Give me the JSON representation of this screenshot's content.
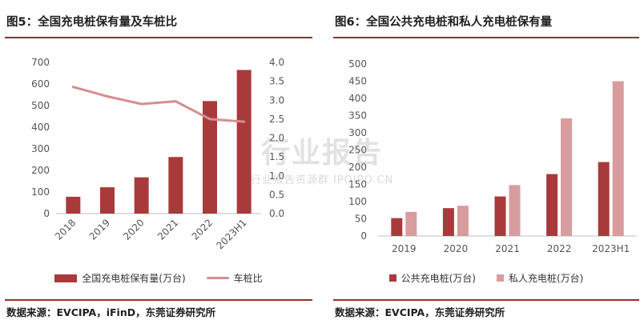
{
  "left": {
    "title": "图5：全国充电桩保有量及车桩比",
    "source": "数据来源：EVCIPA，iFinD，东莞证券研究所",
    "legend": {
      "bar_label": "全国充电桩保有量(万台)",
      "line_label": "车桩比"
    }
  },
  "right": {
    "title": "图6：全国公共充电桩和私人充电桩保有量",
    "source": "数据来源：EVCIPA，东莞证券研究所",
    "legend": {
      "public_label": "公共充电桩(万台)",
      "private_label": "私人充电桩(万台)"
    }
  },
  "watermark": {
    "main": "行业报告",
    "sub": "行业报告资源群 IPOIPO.CN"
  },
  "chart_data": [
    {
      "type": "bar",
      "categories": [
        "2018",
        "2019",
        "2020",
        "2021",
        "2022",
        "2023H1"
      ],
      "series": [
        {
          "name": "全国充电桩保有量(万台)",
          "type": "bar",
          "axis": "left",
          "color": "#a93a3c",
          "values": [
            78,
            122,
            168,
            262,
            521,
            665
          ]
        },
        {
          "name": "车桩比",
          "type": "line",
          "axis": "right",
          "color": "#d48e90",
          "values": [
            3.35,
            3.1,
            2.9,
            2.97,
            2.5,
            2.43
          ]
        }
      ],
      "y_left": {
        "min": 0,
        "max": 700,
        "step": 100,
        "decimals": 0
      },
      "y_right": {
        "min": 0,
        "max": 4,
        "step": 0.5,
        "decimals": 1
      },
      "grid": false
    },
    {
      "type": "bar",
      "categories": [
        "2019",
        "2020",
        "2021",
        "2022",
        "2023H1"
      ],
      "series": [
        {
          "name": "公共充电桩(万台)",
          "color": "#a93a3c",
          "values": [
            52,
            81,
            115,
            180,
            215
          ]
        },
        {
          "name": "私人充电桩(万台)",
          "color": "#d99c9e",
          "values": [
            70,
            88,
            148,
            342,
            450
          ]
        }
      ],
      "y": {
        "min": 0,
        "max": 500,
        "step": 50,
        "decimals": 0
      },
      "grid": false
    }
  ]
}
